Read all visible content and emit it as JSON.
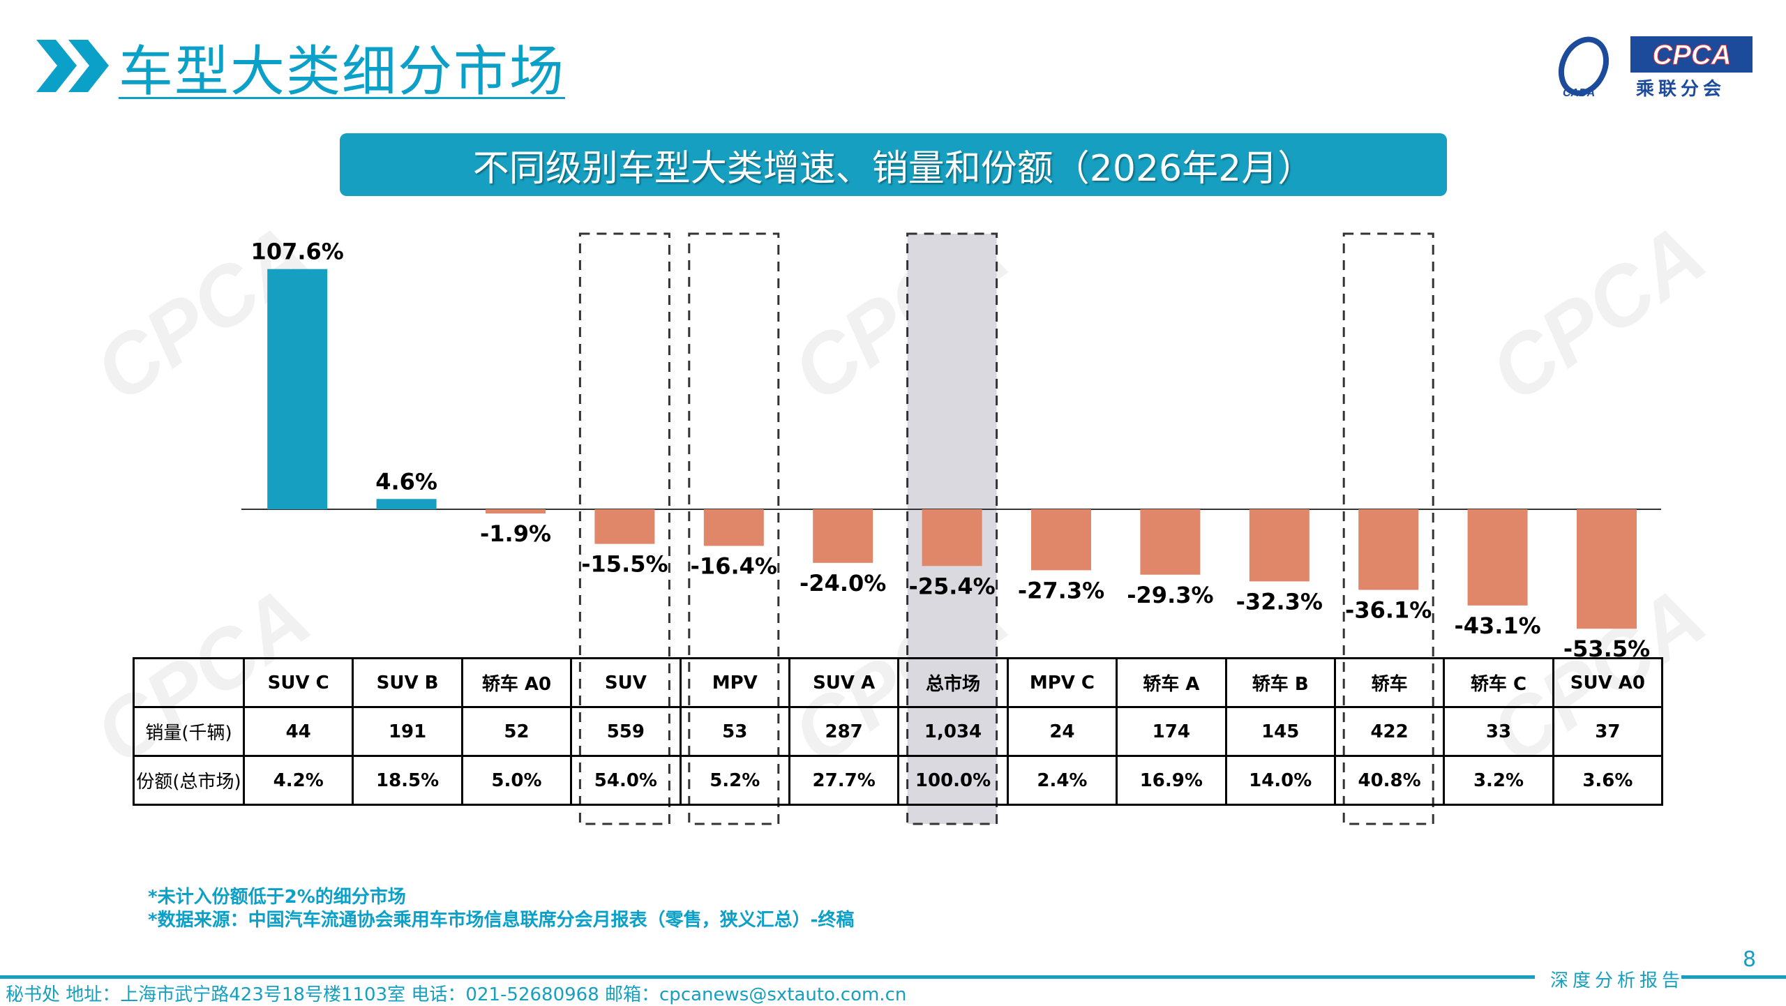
{
  "header": {
    "title": "车型大类细分市场",
    "logo_text": "CPCA",
    "logo_sub": "乘联分会",
    "logo_small": "CADA"
  },
  "banner": "不同级别车型大类增速、销量和份额（2026年2月）",
  "colors": {
    "positive": "#169fc0",
    "negative": "#e0876a",
    "accent": "#0aa0c8",
    "highlight_fill": "#d9d9df"
  },
  "chart_data": {
    "type": "bar",
    "categories": [
      "SUV C",
      "SUV B",
      "轿车 A0",
      "SUV",
      "MPV",
      "SUV A",
      "总市场",
      "MPV C",
      "轿车 A",
      "轿车 B",
      "轿车",
      "轿车 C",
      "SUV A0"
    ],
    "values": [
      107.6,
      4.6,
      -1.9,
      -15.5,
      -16.4,
      -24.0,
      -25.4,
      -27.3,
      -29.3,
      -32.3,
      -36.1,
      -43.1,
      -53.5
    ],
    "data_labels": [
      "107.6%",
      "4.6%",
      "-1.9%",
      "-15.5%",
      "-16.4%",
      "-24.0%",
      "-25.4%",
      "-27.3%",
      "-29.3%",
      "-32.3%",
      "-36.1%",
      "-43.1%",
      "-53.5%"
    ],
    "highlighted_dashed": [
      "SUV",
      "MPV",
      "总市场",
      "轿车"
    ],
    "highlighted_filled": [
      "总市场"
    ],
    "unit": "%"
  },
  "table": {
    "rows": [
      {
        "label": "销量(千辆)",
        "values": [
          "44",
          "191",
          "52",
          "559",
          "53",
          "287",
          "1,034",
          "24",
          "174",
          "145",
          "422",
          "33",
          "37"
        ]
      },
      {
        "label": "份额(总市场)",
        "values": [
          "4.2%",
          "18.5%",
          "5.0%",
          "54.0%",
          "5.2%",
          "27.7%",
          "100.0%",
          "2.4%",
          "16.9%",
          "14.0%",
          "40.8%",
          "3.2%",
          "3.6%"
        ]
      }
    ]
  },
  "footnotes": [
    "*未计入份额低于2%的细分市场",
    "*数据来源：中国汽车流通协会乘用车市场信息联席分会月报表（零售，狭义汇总）-终稿"
  ],
  "footer": {
    "address": "秘书处  地址：上海市武宁路423号18号楼1103室  电话：021-52680968  邮箱：cpcanews@sxtauto.com.cn",
    "report": "深度分析报告",
    "page": "8"
  }
}
